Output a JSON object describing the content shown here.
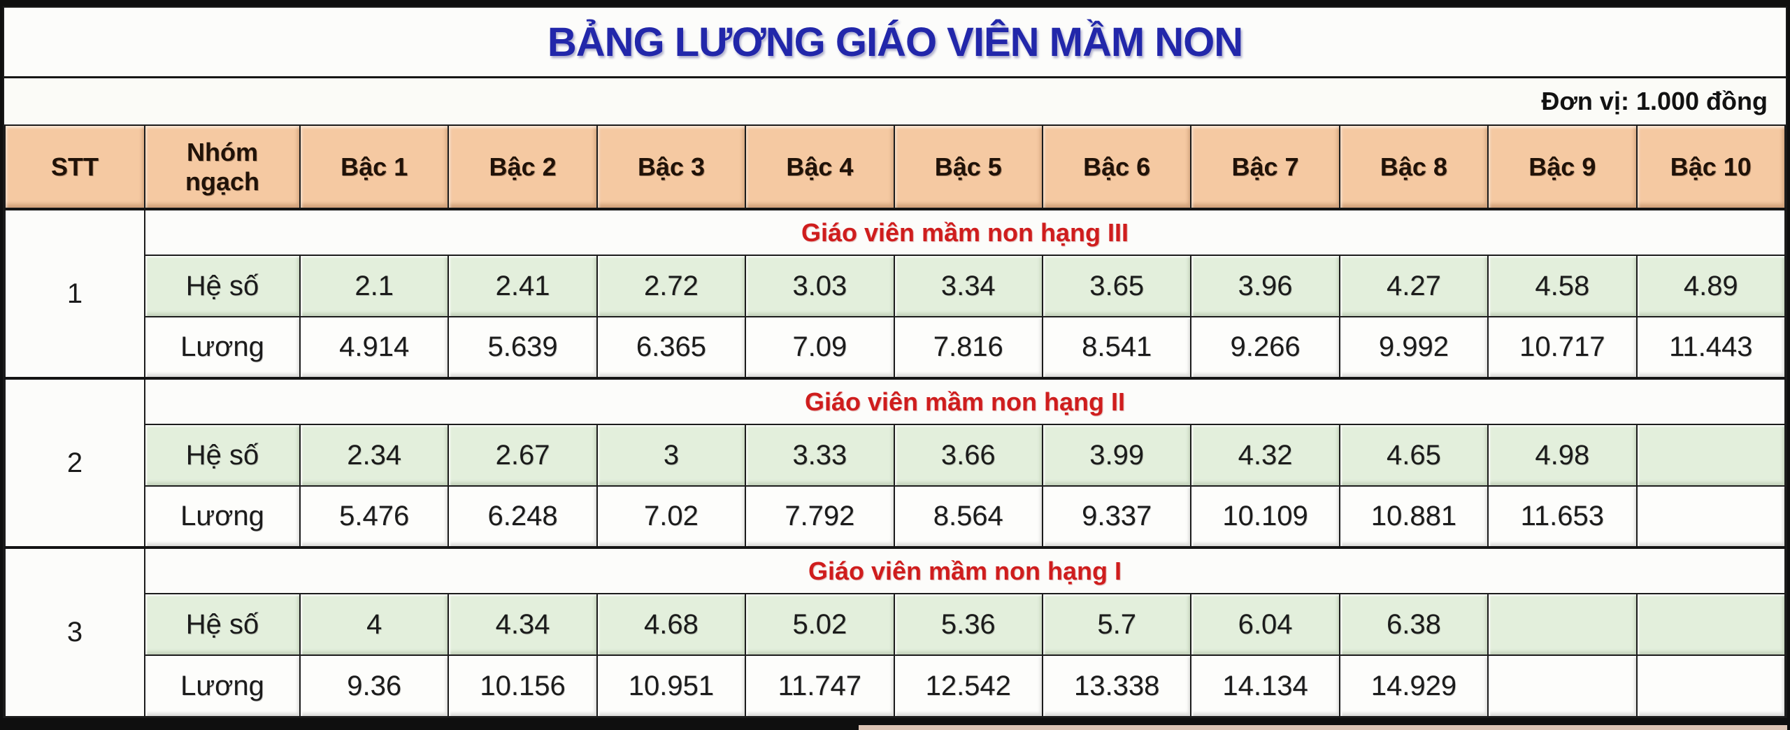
{
  "title": "BẢNG LƯƠNG GIÁO VIÊN MẦM NON",
  "unit_note": "Đơn vị: 1.000 đồng",
  "colors": {
    "title_blue": "#2227aa",
    "section_red": "#cf1d1d",
    "header_peach": "#f5c9a2",
    "coefficient_green": "#e3efdc"
  },
  "table": {
    "headers": [
      "STT",
      "Nhóm ngạch",
      "Bậc 1",
      "Bậc 2",
      "Bậc 3",
      "Bậc 4",
      "Bậc 5",
      "Bậc 6",
      "Bậc 7",
      "Bậc 8",
      "Bậc 9",
      "Bậc 10"
    ],
    "groups": [
      {
        "stt": "1",
        "section_title": "Giáo viên mầm non hạng III",
        "rows": [
          {
            "label": "Hệ số",
            "values": [
              "2.1",
              "2.41",
              "2.72",
              "3.03",
              "3.34",
              "3.65",
              "3.96",
              "4.27",
              "4.58",
              "4.89"
            ]
          },
          {
            "label": "Lương",
            "values": [
              "4.914",
              "5.639",
              "6.365",
              "7.09",
              "7.816",
              "8.541",
              "9.266",
              "9.992",
              "10.717",
              "11.443"
            ]
          }
        ]
      },
      {
        "stt": "2",
        "section_title": "Giáo viên mầm non hạng II",
        "rows": [
          {
            "label": "Hệ số",
            "values": [
              "2.34",
              "2.67",
              "3",
              "3.33",
              "3.66",
              "3.99",
              "4.32",
              "4.65",
              "4.98",
              ""
            ]
          },
          {
            "label": "Lương",
            "values": [
              "5.476",
              "6.248",
              "7.02",
              "7.792",
              "8.564",
              "9.337",
              "10.109",
              "10.881",
              "11.653",
              ""
            ]
          }
        ]
      },
      {
        "stt": "3",
        "section_title": "Giáo viên mầm non hạng I",
        "rows": [
          {
            "label": "Hệ số",
            "values": [
              "4",
              "4.34",
              "4.68",
              "5.02",
              "5.36",
              "5.7",
              "6.04",
              "6.38",
              "",
              ""
            ]
          },
          {
            "label": "Lương",
            "values": [
              "9.36",
              "10.156",
              "10.951",
              "11.747",
              "12.542",
              "13.338",
              "14.134",
              "14.929",
              "",
              ""
            ]
          }
        ]
      }
    ]
  }
}
